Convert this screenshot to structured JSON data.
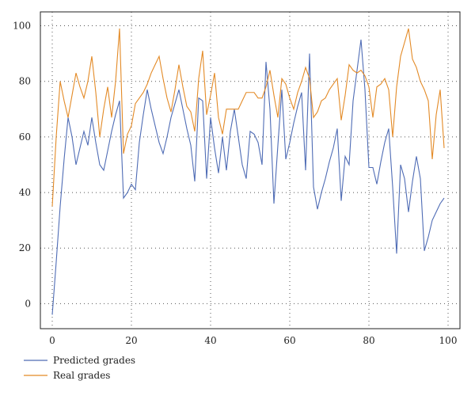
{
  "chart_data": {
    "type": "line",
    "title": "",
    "xlabel": "",
    "ylabel": "",
    "xlim": [
      -3,
      103
    ],
    "ylim": [
      -9,
      105
    ],
    "xticks": [
      0,
      20,
      40,
      60,
      80,
      100
    ],
    "yticks": [
      0,
      20,
      40,
      60,
      80,
      100
    ],
    "grid": true,
    "legend_position": "bottom-left",
    "series": [
      {
        "name": "Predicted grades",
        "color": "#4f6cb5",
        "x": [
          0,
          1,
          2,
          3,
          4,
          5,
          6,
          7,
          8,
          9,
          10,
          11,
          12,
          13,
          14,
          15,
          16,
          17,
          18,
          19,
          20,
          21,
          22,
          23,
          24,
          25,
          26,
          27,
          28,
          29,
          30,
          31,
          32,
          33,
          34,
          35,
          36,
          37,
          38,
          39,
          40,
          41,
          42,
          43,
          44,
          45,
          46,
          47,
          48,
          49,
          50,
          51,
          52,
          53,
          54,
          55,
          56,
          57,
          58,
          59,
          60,
          61,
          62,
          63,
          64,
          65,
          66,
          67,
          68,
          69,
          70,
          71,
          72,
          73,
          74,
          75,
          76,
          77,
          78,
          79,
          80,
          81,
          82,
          83,
          84,
          85,
          86,
          87,
          88,
          89,
          90,
          91,
          92,
          93,
          94,
          95,
          96,
          97,
          98,
          99
        ],
        "values": [
          -4,
          15,
          35,
          52,
          67,
          60,
          50,
          56,
          62,
          57,
          67,
          58,
          50,
          48,
          55,
          62,
          68,
          73,
          38,
          40,
          43,
          41,
          58,
          68,
          77,
          70,
          64,
          58,
          54,
          60,
          67,
          72,
          77,
          70,
          63,
          57,
          44,
          74,
          73,
          45,
          67,
          56,
          47,
          60,
          48,
          62,
          70,
          60,
          50,
          45,
          62,
          61,
          58,
          50,
          87,
          70,
          36,
          57,
          77,
          52,
          58,
          65,
          71,
          76,
          48,
          90,
          42,
          34,
          40,
          45,
          51,
          56,
          63,
          37,
          53,
          50,
          73,
          84,
          95,
          77,
          49,
          49,
          43,
          51,
          58,
          63,
          42,
          18,
          50,
          45,
          33,
          44,
          53,
          45,
          19,
          24,
          30,
          33,
          36,
          38
        ]
      },
      {
        "name": "Real grades",
        "color": "#e38a26",
        "x": [
          0,
          1,
          2,
          3,
          4,
          5,
          6,
          7,
          8,
          9,
          10,
          11,
          12,
          13,
          14,
          15,
          16,
          17,
          18,
          19,
          20,
          21,
          22,
          23,
          24,
          25,
          26,
          27,
          28,
          29,
          30,
          31,
          32,
          33,
          34,
          35,
          36,
          37,
          38,
          39,
          40,
          41,
          42,
          43,
          44,
          45,
          46,
          47,
          48,
          49,
          50,
          51,
          52,
          53,
          54,
          55,
          56,
          57,
          58,
          59,
          60,
          61,
          62,
          63,
          64,
          65,
          66,
          67,
          68,
          69,
          70,
          71,
          72,
          73,
          74,
          75,
          76,
          77,
          78,
          79,
          80,
          81,
          82,
          83,
          84,
          85,
          86,
          87,
          88,
          89,
          90,
          91,
          92,
          93,
          94,
          95,
          96,
          97,
          98,
          99
        ],
        "values": [
          35,
          60,
          80,
          73,
          67,
          75,
          83,
          78,
          74,
          80,
          89,
          76,
          60,
          70,
          78,
          67,
          80,
          99,
          54,
          61,
          64,
          72,
          74,
          76,
          79,
          83,
          86,
          89,
          81,
          74,
          69,
          77,
          86,
          78,
          71,
          69,
          62,
          81,
          91,
          68,
          75,
          83,
          67,
          61,
          70,
          70,
          70,
          70,
          73,
          76,
          76,
          76,
          74,
          74,
          78,
          84,
          75,
          67,
          81,
          79,
          74,
          70,
          76,
          80,
          85,
          81,
          67,
          69,
          73,
          74,
          77,
          79,
          81,
          66,
          75,
          86,
          84,
          83,
          84,
          82,
          78,
          67,
          78,
          79,
          81,
          77,
          60,
          78,
          89,
          94,
          99,
          88,
          85,
          80,
          77,
          73,
          52,
          68,
          77,
          56
        ]
      }
    ]
  }
}
